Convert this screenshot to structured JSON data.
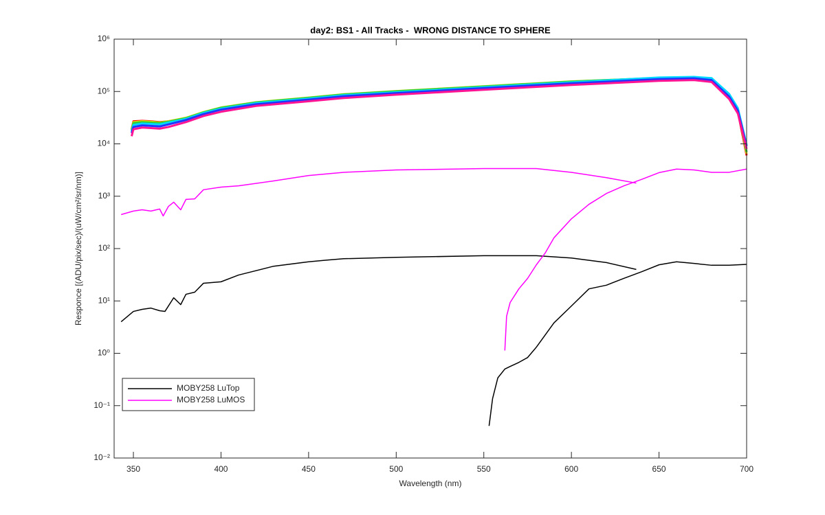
{
  "chart_data": {
    "type": "line",
    "title": "day2: BS1 - All Tracks -  WRONG DISTANCE TO SPHERE",
    "x_label": "Wavelength (nm)",
    "y_label": "Responce [(ADU/pix/sec)/(uW/cm²/sr/nm)]",
    "xlim": [
      339,
      700
    ],
    "xticks": [
      350,
      400,
      450,
      500,
      550,
      600,
      650,
      700
    ],
    "ylim": [
      0.01,
      1000000
    ],
    "yscale": "log",
    "yticks": [
      {
        "value": 0.01,
        "label": "10⁻²"
      },
      {
        "value": 0.1,
        "label": "10⁻¹"
      },
      {
        "value": 1,
        "label": "10⁰"
      },
      {
        "value": 10,
        "label": "10¹"
      },
      {
        "value": 100,
        "label": "10²"
      },
      {
        "value": 1000,
        "label": "10³"
      },
      {
        "value": 10000,
        "label": "10⁴"
      },
      {
        "value": 100000,
        "label": "10⁵"
      },
      {
        "value": 1000000,
        "label": "10⁶"
      }
    ],
    "legend": "southwest",
    "series": [
      {
        "color": "#ff0000",
        "x": [
          349,
          350,
          355,
          360,
          365,
          370,
          380,
          390,
          400,
          420,
          450,
          470,
          500,
          550,
          600,
          650,
          670,
          680,
          690,
          695,
          700
        ],
        "values": [
          19000,
          27000,
          27500,
          27000,
          26000,
          27000,
          31000,
          39500,
          48000,
          60000,
          74000,
          85000,
          97000,
          119000,
          147000,
          173000,
          176000,
          165000,
          78000,
          41000,
          6000
        ]
      },
      {
        "color": "#e6e600",
        "x": [
          349,
          350,
          355,
          360,
          365,
          370,
          380,
          390,
          400,
          420,
          450,
          470,
          500,
          550,
          600,
          650,
          670,
          680,
          690,
          695,
          700
        ],
        "values": [
          18500,
          26000,
          27000,
          26500,
          25500,
          27000,
          31500,
          40500,
          49500,
          62500,
          76500,
          88500,
          102000,
          126000,
          156000,
          180000,
          182000,
          170000,
          83000,
          44000,
          6500
        ]
      },
      {
        "color": "#33cc33",
        "x": [
          349,
          350,
          355,
          360,
          365,
          370,
          380,
          390,
          400,
          420,
          450,
          470,
          500,
          550,
          600,
          650,
          670,
          680,
          690,
          695,
          700
        ],
        "values": [
          18000,
          25000,
          26000,
          25500,
          25000,
          26500,
          31000,
          40000,
          49000,
          62000,
          76000,
          88000,
          101000,
          125000,
          155000,
          182000,
          184000,
          172000,
          85000,
          45000,
          7000
        ]
      },
      {
        "color": "#00d8ff",
        "x": [
          349,
          350,
          355,
          360,
          365,
          370,
          380,
          390,
          400,
          420,
          450,
          470,
          500,
          550,
          600,
          650,
          670,
          680,
          690,
          695,
          700
        ],
        "values": [
          17000,
          23000,
          24500,
          24000,
          23500,
          25500,
          30000,
          39000,
          47000,
          60000,
          73000,
          85000,
          97000,
          121000,
          150000,
          185000,
          190000,
          180000,
          90000,
          48000,
          9500
        ]
      },
      {
        "color": "#2233ff",
        "x": [
          349,
          350,
          355,
          360,
          365,
          370,
          380,
          390,
          400,
          420,
          450,
          470,
          500,
          550,
          600,
          650,
          670,
          680,
          690,
          695,
          700
        ],
        "values": [
          16000,
          21000,
          22500,
          22000,
          21500,
          23500,
          28500,
          37000,
          45000,
          57000,
          70000,
          81000,
          93000,
          116000,
          143000,
          172000,
          178000,
          165000,
          80000,
          43000,
          9000
        ]
      },
      {
        "color": "#ff1493",
        "x": [
          349,
          350,
          355,
          360,
          365,
          370,
          380,
          390,
          400,
          420,
          450,
          470,
          500,
          550,
          600,
          650,
          670,
          680,
          690,
          695,
          700
        ],
        "values": [
          14000,
          19000,
          20500,
          20000,
          19500,
          21000,
          26000,
          34000,
          41000,
          53000,
          65000,
          75000,
          87000,
          108000,
          133000,
          160000,
          165000,
          152000,
          72000,
          38000,
          8000
        ]
      },
      {
        "name": "MOBY258 LuTop",
        "color": "#000000",
        "x": [
          343,
          350,
          355,
          360,
          365,
          368,
          373,
          377,
          380,
          385,
          390,
          400,
          410,
          430,
          450,
          460,
          470,
          500,
          550,
          580,
          600,
          620,
          637,
          null,
          553,
          553.5,
          555,
          558,
          562,
          565,
          570,
          575,
          580,
          590,
          600,
          610,
          620,
          630,
          640,
          650,
          660,
          670,
          680,
          690,
          700
        ],
        "values": [
          4.0,
          6.3,
          6.9,
          7.3,
          6.5,
          6.3,
          11.5,
          8.5,
          13.4,
          14.7,
          21.8,
          23.2,
          31.2,
          46,
          56,
          60,
          64,
          68,
          73,
          73,
          66,
          54,
          40,
          null,
          0.041,
          0.055,
          0.136,
          0.34,
          0.5,
          0.56,
          0.67,
          0.83,
          1.31,
          3.8,
          8.0,
          17,
          20,
          27,
          36,
          49,
          56,
          52,
          48,
          48,
          50
        ]
      },
      {
        "name": "MOBY258 LuMOS",
        "color": "#ff00ff",
        "x": [
          343,
          350,
          355,
          360,
          365,
          367,
          370,
          373,
          377,
          380,
          385,
          390,
          400,
          410,
          430,
          450,
          470,
          500,
          550,
          580,
          600,
          620,
          637,
          null,
          562,
          563,
          565,
          570,
          575,
          580,
          585,
          590,
          600,
          610,
          620,
          630,
          640,
          650,
          660,
          670,
          680,
          690,
          700
        ],
        "values": [
          446,
          520,
          550,
          520,
          570,
          420,
          640,
          770,
          550,
          870,
          890,
          1330,
          1490,
          1580,
          1960,
          2480,
          2860,
          3170,
          3370,
          3370,
          2860,
          2260,
          1780,
          null,
          1.13,
          5.1,
          9.3,
          17,
          27,
          49,
          82,
          160,
          370,
          700,
          1130,
          1580,
          2090,
          2820,
          3300,
          3170,
          2860,
          2860,
          3300
        ]
      }
    ]
  }
}
